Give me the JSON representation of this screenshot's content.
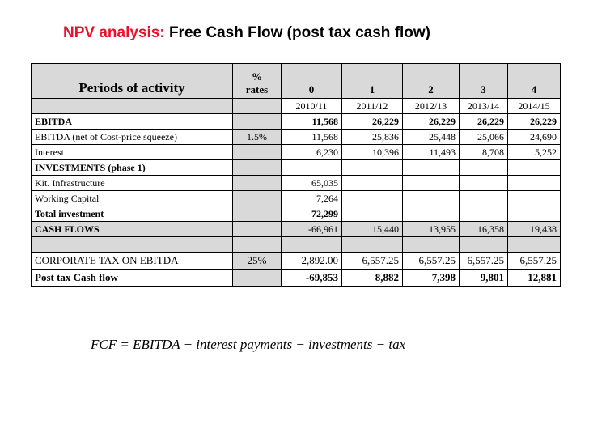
{
  "header": {
    "title_highlight": "NPV analysis:",
    "title": "Free Cash Flow (post tax cash flow)"
  },
  "table": {
    "label_header": "Periods of activity",
    "rate_header": [
      "%",
      "rates"
    ],
    "periods": [
      "0",
      "1",
      "2",
      "3",
      "4"
    ],
    "years": [
      "2010/11",
      "2011/12",
      "2012/13",
      "2013/14",
      "2014/15"
    ],
    "rows": [
      {
        "label": "EBITDA",
        "values": [
          "11,568",
          "26,229",
          "26,229",
          "26,229",
          "26,229"
        ]
      },
      {
        "label": "EBITDA (net of Cost-price squeeze)",
        "rate": "1.5%",
        "values": [
          "11,568",
          "25,836",
          "25,448",
          "25,066",
          "24,690"
        ]
      },
      {
        "label": "Interest",
        "values": [
          "6,230",
          "10,396",
          "11,493",
          "8,708",
          "5,252"
        ]
      },
      {
        "label": "INVESTMENTS (phase 1)",
        "values": []
      },
      {
        "label": "Kit. Infrastructure",
        "values": [
          "65,035"
        ]
      },
      {
        "label": "Working Capital",
        "values": [
          "7,264"
        ]
      },
      {
        "label": "Total investment",
        "values": [
          "72,299"
        ]
      },
      {
        "label": "CASH FLOWS",
        "values": [
          "-66,961",
          "15,440",
          "13,955",
          "16,358",
          "19,438"
        ]
      },
      {
        "label": "CORPORATE TAX ON EBITDA",
        "rate": "25%",
        "values": [
          "2,892.00",
          "6,557.25",
          "6,557.25",
          "6,557.25",
          "6,557.25"
        ]
      },
      {
        "label": "Post tax Cash flow",
        "values": [
          "-69,853",
          "8,882",
          "7,398",
          "9,801",
          "12,881"
        ]
      }
    ]
  },
  "formula": "FCF = EBITDA − interest payments − investments − tax"
}
